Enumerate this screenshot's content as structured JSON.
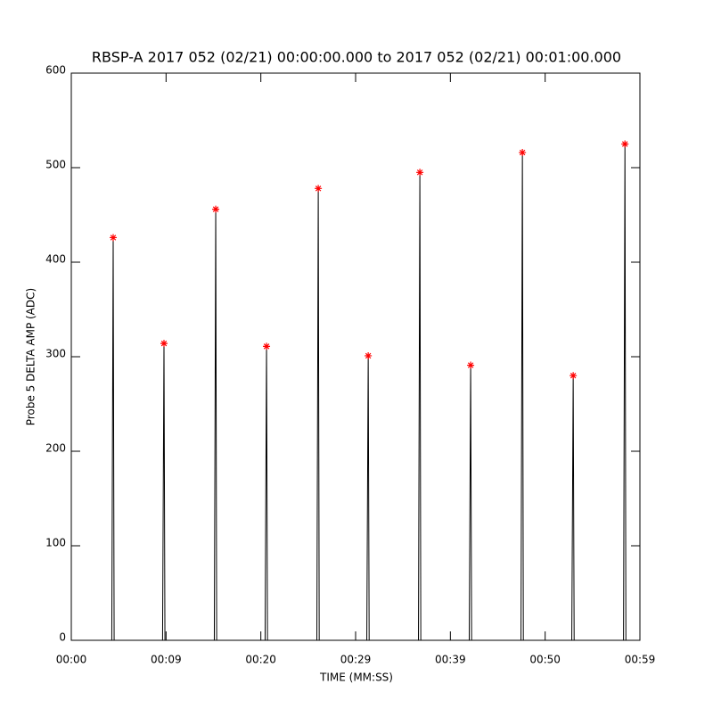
{
  "chart_data": {
    "type": "line",
    "title": "RBSP-A 2017 052 (02/21) 00:00:00.000 to 2017 052 (02/21) 00:01:00.000",
    "x_label": "TIME (MM:SS)",
    "y_label": "Probe 5 DELTA AMP (ADC)",
    "xlim": [
      0,
      60
    ],
    "ylim": [
      0,
      600
    ],
    "xticks": [
      {
        "value": 0,
        "label": "00:00"
      },
      {
        "value": 10,
        "label": "00:09"
      },
      {
        "value": 20,
        "label": "00:20"
      },
      {
        "value": 30,
        "label": "00:29"
      },
      {
        "value": 40,
        "label": "00:39"
      },
      {
        "value": 50,
        "label": "00:50"
      },
      {
        "value": 60,
        "label": "00:59"
      }
    ],
    "yticks": [
      0,
      100,
      200,
      300,
      400,
      500,
      600
    ],
    "series": [
      {
        "color": "#000000",
        "x": [
          0.5,
          4.27,
          4.42,
          4.52,
          9.63,
          9.78,
          9.88,
          15.09,
          15.24,
          15.34,
          20.45,
          20.6,
          20.7,
          25.91,
          26.06,
          26.16,
          31.18,
          31.33,
          31.43,
          36.63,
          36.78,
          36.88,
          41.99,
          42.14,
          42.24,
          47.45,
          47.6,
          47.7,
          52.81,
          52.96,
          53.06,
          58.27,
          58.42,
          58.52
        ],
        "values": [
          0,
          0,
          426,
          0,
          0,
          314,
          0,
          0,
          456,
          0,
          0,
          311,
          0,
          0,
          478,
          0,
          0,
          301,
          0,
          0,
          495,
          0,
          0,
          291,
          0,
          0,
          516,
          0,
          0,
          280,
          0,
          0,
          525,
          0
        ]
      },
      {
        "color": "#ff0000",
        "marker": "asterisk",
        "x": [
          4.42,
          9.78,
          15.24,
          20.6,
          26.06,
          31.33,
          36.78,
          42.14,
          47.6,
          52.96,
          58.42
        ],
        "values": [
          426,
          314,
          456,
          311,
          478,
          301,
          495,
          291,
          516,
          280,
          525
        ]
      }
    ]
  }
}
